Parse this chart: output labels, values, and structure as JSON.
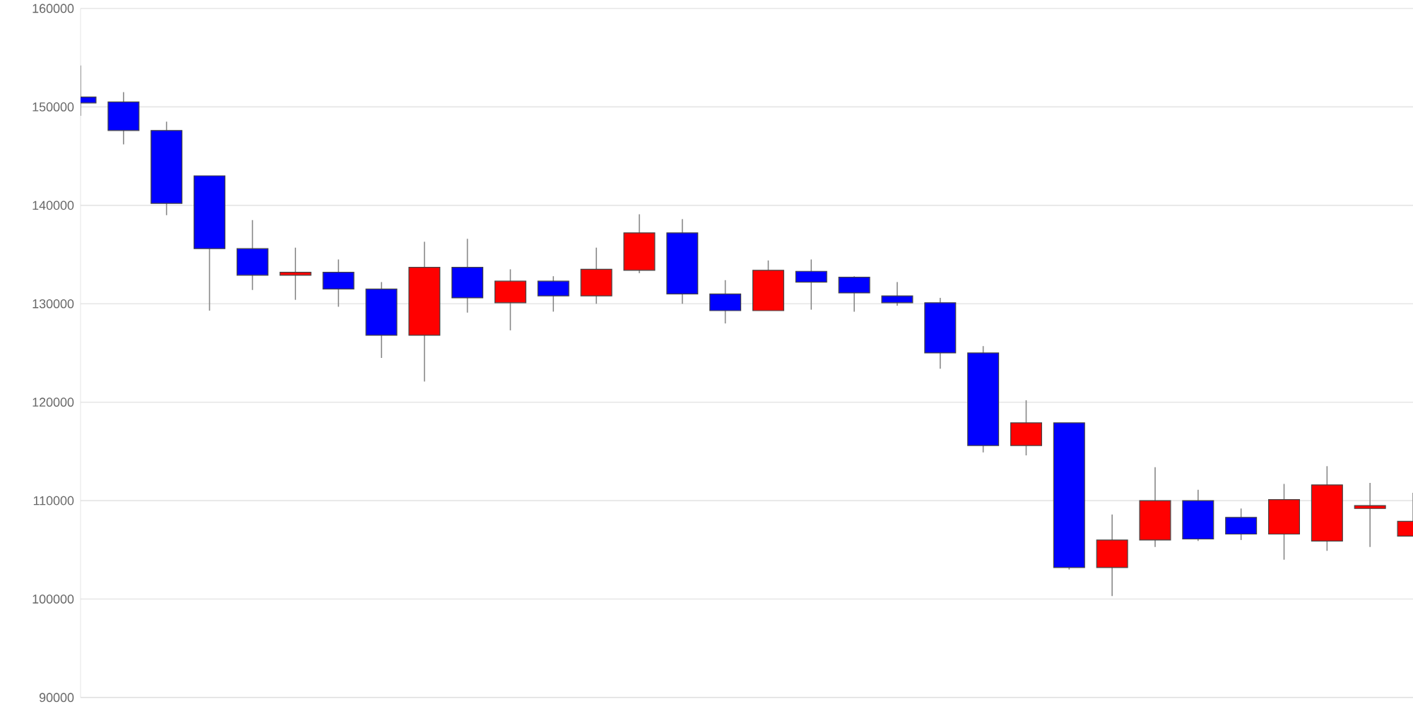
{
  "chart_data": {
    "type": "candlestick",
    "categories": [
      null,
      null,
      null,
      null,
      null,
      null,
      null,
      null,
      null,
      null,
      null,
      null,
      null,
      null,
      null,
      null,
      null,
      null,
      null,
      null,
      null,
      null,
      null,
      null,
      null,
      null,
      null,
      null,
      null,
      null,
      null,
      null
    ],
    "ohlc": [
      [
        151000,
        154200,
        149100,
        150400
      ],
      [
        150500,
        151500,
        146200,
        147600
      ],
      [
        147600,
        148500,
        139000,
        140200
      ],
      [
        143000,
        143000,
        129300,
        135600
      ],
      [
        135600,
        138500,
        131400,
        132900
      ],
      [
        132900,
        135700,
        130400,
        133200
      ],
      [
        133200,
        134500,
        129700,
        131500
      ],
      [
        131500,
        132200,
        124500,
        126800
      ],
      [
        126800,
        136300,
        122100,
        133700
      ],
      [
        133700,
        136600,
        129100,
        130600
      ],
      [
        130100,
        133500,
        127300,
        132300
      ],
      [
        132300,
        132800,
        129200,
        130800
      ],
      [
        130800,
        135700,
        130000,
        133500
      ],
      [
        133400,
        139100,
        133100,
        137200
      ],
      [
        137200,
        138600,
        130000,
        131000
      ],
      [
        131000,
        132400,
        128000,
        129300
      ],
      [
        129300,
        134400,
        129300,
        133400
      ],
      [
        133300,
        134500,
        129400,
        132200
      ],
      [
        132700,
        132800,
        129200,
        131100
      ],
      [
        130800,
        132200,
        129800,
        130100
      ],
      [
        130100,
        130600,
        123400,
        125000
      ],
      [
        125000,
        125700,
        114900,
        115600
      ],
      [
        115600,
        120200,
        114600,
        117900
      ],
      [
        117900,
        117900,
        103000,
        103200
      ],
      [
        103200,
        108600,
        100300,
        106000
      ],
      [
        106000,
        113400,
        105300,
        110000
      ],
      [
        110000,
        111100,
        105900,
        106100
      ],
      [
        108300,
        109200,
        106000,
        106600
      ],
      [
        106600,
        111700,
        104000,
        110100
      ],
      [
        105900,
        113500,
        104900,
        111600
      ],
      [
        109200,
        111800,
        105300,
        109500
      ],
      [
        106400,
        110800,
        106400,
        107900
      ]
    ],
    "colors": [
      "#0000ff",
      "#0000ff",
      "#0000ff",
      "#0000ff",
      "#0000ff",
      "#ff0000",
      "#0000ff",
      "#0000ff",
      "#ff0000",
      "#0000ff",
      "#ff0000",
      "#0000ff",
      "#ff0000",
      "#ff0000",
      "#0000ff",
      "#0000ff",
      "#ff0000",
      "#0000ff",
      "#0000ff",
      "#0000ff",
      "#0000ff",
      "#0000ff",
      "#ff0000",
      "#0000ff",
      "#ff0000",
      "#ff0000",
      "#0000ff",
      "#0000ff",
      "#ff0000",
      "#ff0000",
      "#ff0000",
      "#ff0000"
    ],
    "ylim": [
      90000,
      160000
    ],
    "yticks": [
      90000,
      100000,
      110000,
      120000,
      130000,
      140000,
      150000,
      160000
    ],
    "grid": "y",
    "tick_labels": "y"
  }
}
